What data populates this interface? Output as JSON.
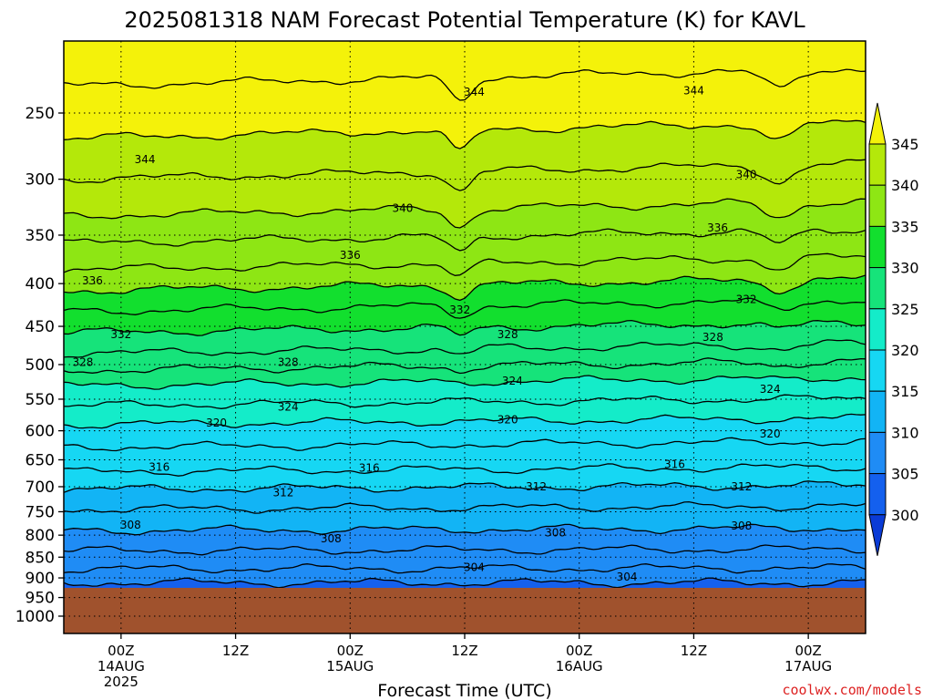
{
  "chart_data": {
    "type": "heatmap",
    "title": "2025081318 NAM Forecast Potential Temperature (K) for KAVL",
    "xlabel": "Forecast Time (UTC)",
    "ylabel": "",
    "y_axis": {
      "scale": "pressure",
      "direction": "decreasing-upward",
      "ticks": [
        250,
        300,
        350,
        400,
        450,
        500,
        550,
        600,
        650,
        700,
        750,
        800,
        850,
        900,
        950,
        1000
      ],
      "range": [
        1000,
        200
      ]
    },
    "x_axis": {
      "range_hours": [
        0,
        84
      ],
      "tick_hours": [
        6,
        18,
        30,
        42,
        54,
        66,
        78
      ],
      "tick_labels": [
        [
          "00Z",
          "14AUG",
          "2025"
        ],
        [
          "12Z"
        ],
        [
          "00Z",
          "15AUG"
        ],
        [
          "12Z"
        ],
        [
          "00Z",
          "16AUG"
        ],
        [
          "12Z"
        ],
        [
          "00Z",
          "17AUG"
        ]
      ]
    },
    "grid": true,
    "colorbar": {
      "levels": [
        300,
        305,
        310,
        315,
        320,
        325,
        330,
        335,
        340,
        345
      ],
      "colors": [
        "#0a3bd6",
        "#1460ee",
        "#1f8cf5",
        "#12b4f5",
        "#16d7f3",
        "#14ecc9",
        "#16e37a",
        "#12df2e",
        "#8ee614",
        "#b4e80a",
        "#f4f20a"
      ],
      "position": "right"
    },
    "ground_below_hPa": 925,
    "ground_color": "#a0522d",
    "contour_interval": 2,
    "contour_levels_labeled": [
      304,
      308,
      312,
      316,
      320,
      324,
      328,
      332,
      336,
      340,
      344
    ],
    "contour_profile_hPa": [
      {
        "theta": 304,
        "p": 912
      },
      {
        "theta": 306,
        "p": 878
      },
      {
        "theta": 308,
        "p": 835
      },
      {
        "theta": 310,
        "p": 790
      },
      {
        "theta": 312,
        "p": 745
      },
      {
        "theta": 314,
        "p": 705
      },
      {
        "theta": 316,
        "p": 672
      },
      {
        "theta": 318,
        "p": 628
      },
      {
        "theta": 320,
        "p": 590
      },
      {
        "theta": 322,
        "p": 560
      },
      {
        "theta": 324,
        "p": 530
      },
      {
        "theta": 326,
        "p": 508
      },
      {
        "theta": 328,
        "p": 485
      },
      {
        "theta": 330,
        "p": 458
      },
      {
        "theta": 332,
        "p": 432
      },
      {
        "theta": 334,
        "p": 408
      },
      {
        "theta": 336,
        "p": 385
      },
      {
        "theta": 338,
        "p": 358
      },
      {
        "theta": 340,
        "p": 332
      },
      {
        "theta": 342,
        "p": 300
      },
      {
        "theta": 344,
        "p": 268
      },
      {
        "theta": 346,
        "p": 232
      }
    ],
    "contour_labels": [
      {
        "text": "344",
        "x_hours": 8.5,
        "p": 284
      },
      {
        "text": "344",
        "x_hours": 43,
        "p": 236
      },
      {
        "text": "344",
        "x_hours": 66,
        "p": 235
      },
      {
        "text": "340",
        "x_hours": 35.5,
        "p": 325
      },
      {
        "text": "340",
        "x_hours": 71.5,
        "p": 296
      },
      {
        "text": "336",
        "x_hours": 3,
        "p": 397
      },
      {
        "text": "336",
        "x_hours": 30,
        "p": 370
      },
      {
        "text": "336",
        "x_hours": 68.5,
        "p": 343
      },
      {
        "text": "332",
        "x_hours": 6,
        "p": 460
      },
      {
        "text": "332",
        "x_hours": 41.5,
        "p": 430
      },
      {
        "text": "332",
        "x_hours": 71.5,
        "p": 418
      },
      {
        "text": "328",
        "x_hours": 2,
        "p": 497
      },
      {
        "text": "328",
        "x_hours": 23.5,
        "p": 497
      },
      {
        "text": "328",
        "x_hours": 46.5,
        "p": 460
      },
      {
        "text": "328",
        "x_hours": 68,
        "p": 464
      },
      {
        "text": "324",
        "x_hours": 23.5,
        "p": 562
      },
      {
        "text": "324",
        "x_hours": 47,
        "p": 523
      },
      {
        "text": "324",
        "x_hours": 74,
        "p": 535
      },
      {
        "text": "320",
        "x_hours": 16,
        "p": 587
      },
      {
        "text": "320",
        "x_hours": 46.5,
        "p": 582
      },
      {
        "text": "320",
        "x_hours": 74,
        "p": 605
      },
      {
        "text": "316",
        "x_hours": 10,
        "p": 663
      },
      {
        "text": "316",
        "x_hours": 32,
        "p": 665
      },
      {
        "text": "316",
        "x_hours": 64,
        "p": 658
      },
      {
        "text": "312",
        "x_hours": 23,
        "p": 712
      },
      {
        "text": "312",
        "x_hours": 49.5,
        "p": 700
      },
      {
        "text": "312",
        "x_hours": 71,
        "p": 700
      },
      {
        "text": "308",
        "x_hours": 7,
        "p": 778
      },
      {
        "text": "308",
        "x_hours": 28,
        "p": 808
      },
      {
        "text": "308",
        "x_hours": 51.5,
        "p": 795
      },
      {
        "text": "308",
        "x_hours": 71,
        "p": 780
      },
      {
        "text": "304",
        "x_hours": 43,
        "p": 874
      },
      {
        "text": "304",
        "x_hours": 59,
        "p": 898
      }
    ]
  },
  "credit": "coolwx.com/models"
}
